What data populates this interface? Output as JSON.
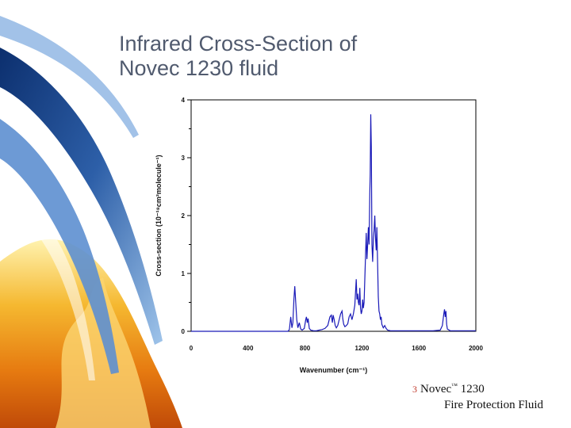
{
  "slide": {
    "title_line1": "Infrared Cross-Section of",
    "title_line2": "Novec 1230 fluid"
  },
  "footer": {
    "bullet": "3",
    "brand": "Novec",
    "trademark": "™",
    "product_number": " 1230",
    "subtitle": "Fire Protection Fluid"
  },
  "colors": {
    "series": "#1a1ab8",
    "accent_blue": "#2d5fa8",
    "accent_fire": "#f0a020"
  },
  "chart_data": {
    "type": "line",
    "xlabel": "Wavenumber (cm⁻¹)",
    "ylabel": "Cross-section (10⁻¹⁸cm²molecule⁻¹)",
    "xlim": [
      0,
      2000
    ],
    "ylim": [
      0,
      4
    ],
    "xticks": [
      0,
      400,
      800,
      1200,
      1600,
      2000
    ],
    "yticks": [
      0,
      1,
      2,
      3,
      4
    ],
    "grid": false,
    "series": [
      {
        "x": [
          0,
          680,
          690,
          700,
          708,
          715,
          722,
          728,
          735,
          742,
          750,
          760,
          770,
          780,
          795,
          805,
          810,
          816,
          822,
          830,
          840,
          860,
          880,
          900,
          920,
          940,
          960,
          975,
          985,
          992,
          998,
          1005,
          1012,
          1020,
          1030,
          1040,
          1050,
          1060,
          1065,
          1072,
          1080,
          1090,
          1100,
          1110,
          1120,
          1130,
          1140,
          1150,
          1160,
          1165,
          1170,
          1175,
          1180,
          1185,
          1190,
          1195,
          1200,
          1205,
          1210,
          1215,
          1220,
          1225,
          1230,
          1235,
          1240,
          1245,
          1250,
          1255,
          1258,
          1262,
          1266,
          1270,
          1275,
          1280,
          1285,
          1290,
          1295,
          1300,
          1305,
          1310,
          1315,
          1320,
          1325,
          1330,
          1335,
          1340,
          1350,
          1360,
          1370,
          1380,
          1400,
          1500,
          1600,
          1700,
          1750,
          1765,
          1770,
          1775,
          1780,
          1785,
          1790,
          1795,
          1800,
          1820,
          2000
        ],
        "y": [
          0,
          0,
          0.03,
          0.25,
          0.06,
          0.15,
          0.55,
          0.78,
          0.5,
          0.2,
          0.06,
          0.15,
          0.04,
          0.02,
          0.05,
          0.2,
          0.25,
          0.15,
          0.22,
          0.05,
          0.02,
          0.01,
          0.01,
          0.02,
          0.03,
          0.05,
          0.1,
          0.25,
          0.28,
          0.15,
          0.28,
          0.2,
          0.1,
          0.06,
          0.1,
          0.2,
          0.3,
          0.35,
          0.22,
          0.12,
          0.08,
          0.1,
          0.13,
          0.25,
          0.3,
          0.2,
          0.3,
          0.45,
          0.9,
          0.55,
          0.65,
          0.5,
          0.45,
          0.75,
          0.4,
          0.3,
          0.35,
          0.55,
          0.4,
          0.5,
          0.9,
          1.3,
          1.7,
          1.25,
          1.5,
          1.8,
          1.5,
          2.4,
          2.7,
          3.75,
          3.2,
          1.5,
          1.2,
          1.6,
          1.75,
          2.0,
          1.6,
          1.4,
          1.8,
          1.2,
          0.6,
          0.35,
          0.3,
          0.2,
          0.25,
          0.12,
          0.06,
          0.1,
          0.05,
          0.02,
          0.01,
          0.01,
          0.01,
          0.01,
          0.02,
          0.1,
          0.2,
          0.3,
          0.38,
          0.25,
          0.35,
          0.12,
          0.04,
          0.01,
          0.01
        ]
      }
    ]
  }
}
